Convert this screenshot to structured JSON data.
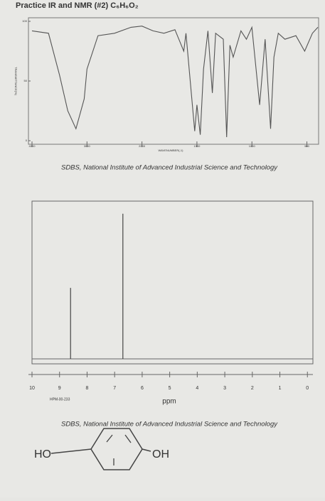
{
  "title": "Practice IR and NMR (#2) C₆H₆O₂",
  "chart_data": [
    {
      "type": "line",
      "ylabel": "TRANSMITTANCE(%)",
      "xlabel": "WAVENUMBER(-1)",
      "x": [
        4000,
        3700,
        3500,
        3350,
        3200,
        3050,
        3000,
        2800,
        2500,
        2200,
        2000,
        1900,
        1800,
        1700,
        1620,
        1600,
        1520,
        1500,
        1470,
        1440,
        1400,
        1360,
        1330,
        1260,
        1230,
        1200,
        1170,
        1100,
        1050,
        1000,
        930,
        880,
        830,
        800,
        760,
        700,
        600,
        520,
        450,
        400
      ],
      "values": [
        92,
        90,
        55,
        25,
        10,
        35,
        60,
        88,
        90,
        95,
        96,
        92,
        90,
        93,
        75,
        90,
        8,
        30,
        5,
        60,
        92,
        40,
        90,
        85,
        3,
        80,
        70,
        92,
        85,
        95,
        30,
        85,
        10,
        70,
        90,
        85,
        88,
        75,
        90,
        95
      ],
      "color": "#555555",
      "x_scale": "piecewise",
      "xlim": [
        4000,
        400
      ],
      "xticks": [
        4000,
        3000,
        2000,
        1500,
        1000,
        500
      ],
      "ylim": [
        0,
        100
      ],
      "yticks": [
        0,
        50,
        100
      ]
    },
    {
      "type": "stem",
      "xlabel": "ppm",
      "x": [
        8.6,
        6.7
      ],
      "values": [
        45,
        92
      ],
      "color": "#444444",
      "xlim": [
        10,
        -0.2
      ],
      "xticks": [
        10,
        9,
        8,
        7,
        6,
        5,
        4,
        3,
        2,
        1,
        0
      ],
      "ylim": [
        0,
        100
      ]
    }
  ],
  "ir_caption": "SDBS, National Institute of Advanced Industrial Science and Technology",
  "nmr_code": "HPM-00-233",
  "nmr_caption": "SDBS, National Institute of Advanced Industrial Science and Technology",
  "molecule": {
    "left": "HO",
    "right": "OH"
  }
}
